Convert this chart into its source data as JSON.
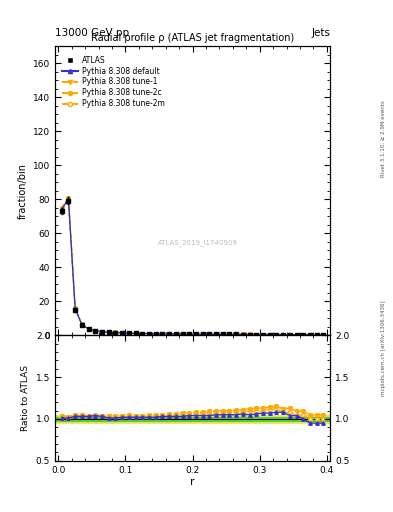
{
  "title": "Radial profile ρ (ATLAS jet fragmentation)",
  "top_left_label": "13000 GeV pp",
  "top_right_label": "Jets",
  "right_label_top": "Rivet 3.1.10, ≥ 2.9M events",
  "right_label_bottom": "mcplots.cern.ch [arXiv:1306.3436]",
  "watermark": "ATLAS_2019_I1740909",
  "ylabel_main": "fraction/bin",
  "ylabel_ratio": "Ratio to ATLAS",
  "xlabel": "r",
  "ylim_main": [
    0,
    170
  ],
  "ylim_ratio": [
    0.5,
    2.0
  ],
  "yticks_main": [
    0,
    20,
    40,
    60,
    80,
    100,
    120,
    140,
    160
  ],
  "yticks_ratio": [
    0.5,
    1.0,
    1.5,
    2.0
  ],
  "r_values": [
    0.005,
    0.015,
    0.025,
    0.035,
    0.045,
    0.055,
    0.065,
    0.075,
    0.085,
    0.095,
    0.105,
    0.115,
    0.125,
    0.135,
    0.145,
    0.155,
    0.165,
    0.175,
    0.185,
    0.195,
    0.205,
    0.215,
    0.225,
    0.235,
    0.245,
    0.255,
    0.265,
    0.275,
    0.285,
    0.295,
    0.305,
    0.315,
    0.325,
    0.335,
    0.345,
    0.355,
    0.365,
    0.375,
    0.385,
    0.395
  ],
  "atlas_data": [
    73,
    79,
    15,
    6,
    3.5,
    2.5,
    2.0,
    1.7,
    1.5,
    1.3,
    1.1,
    1.0,
    0.9,
    0.85,
    0.8,
    0.75,
    0.7,
    0.65,
    0.6,
    0.55,
    0.5,
    0.48,
    0.46,
    0.44,
    0.42,
    0.4,
    0.38,
    0.36,
    0.34,
    0.32,
    0.3,
    0.28,
    0.26,
    0.25,
    0.24,
    0.23,
    0.22,
    0.21,
    0.2,
    0.19
  ],
  "atlas_err": [
    2,
    2,
    0.5,
    0.3,
    0.15,
    0.1,
    0.08,
    0.07,
    0.06,
    0.05,
    0.04,
    0.04,
    0.03,
    0.03,
    0.03,
    0.03,
    0.03,
    0.02,
    0.02,
    0.02,
    0.02,
    0.02,
    0.02,
    0.02,
    0.02,
    0.02,
    0.02,
    0.02,
    0.02,
    0.02,
    0.02,
    0.01,
    0.01,
    0.01,
    0.01,
    0.01,
    0.01,
    0.01,
    0.01,
    0.01
  ],
  "pythia_default": [
    74,
    80,
    15.5,
    6.2,
    3.6,
    2.6,
    2.05,
    1.72,
    1.52,
    1.32,
    1.12,
    1.02,
    0.92,
    0.87,
    0.82,
    0.77,
    0.72,
    0.67,
    0.62,
    0.57,
    0.52,
    0.5,
    0.48,
    0.46,
    0.44,
    0.42,
    0.4,
    0.38,
    0.36,
    0.34,
    0.32,
    0.3,
    0.28,
    0.27,
    0.25,
    0.24,
    0.22,
    0.2,
    0.19,
    0.18
  ],
  "pythia_tune1": [
    75,
    80.5,
    15.8,
    6.3,
    3.65,
    2.62,
    2.07,
    1.75,
    1.55,
    1.35,
    1.15,
    1.04,
    0.94,
    0.89,
    0.84,
    0.79,
    0.74,
    0.69,
    0.64,
    0.59,
    0.54,
    0.52,
    0.5,
    0.48,
    0.46,
    0.44,
    0.42,
    0.4,
    0.38,
    0.36,
    0.34,
    0.32,
    0.3,
    0.28,
    0.27,
    0.25,
    0.24,
    0.22,
    0.21,
    0.2
  ],
  "pythia_tune2c": [
    75,
    80.5,
    15.8,
    6.3,
    3.65,
    2.62,
    2.07,
    1.75,
    1.55,
    1.35,
    1.15,
    1.04,
    0.94,
    0.89,
    0.84,
    0.79,
    0.74,
    0.69,
    0.64,
    0.59,
    0.54,
    0.52,
    0.5,
    0.48,
    0.46,
    0.44,
    0.42,
    0.4,
    0.38,
    0.36,
    0.34,
    0.32,
    0.3,
    0.28,
    0.27,
    0.25,
    0.24,
    0.22,
    0.21,
    0.2
  ],
  "pythia_tune2m": [
    74.5,
    80.2,
    15.6,
    6.25,
    3.62,
    2.58,
    2.06,
    1.73,
    1.53,
    1.33,
    1.13,
    1.03,
    0.93,
    0.88,
    0.83,
    0.78,
    0.73,
    0.68,
    0.63,
    0.58,
    0.53,
    0.51,
    0.49,
    0.47,
    0.45,
    0.43,
    0.41,
    0.39,
    0.37,
    0.35,
    0.33,
    0.31,
    0.29,
    0.27,
    0.26,
    0.24,
    0.23,
    0.21,
    0.2,
    0.19
  ],
  "ratio_default": [
    1.01,
    1.01,
    1.03,
    1.03,
    1.03,
    1.04,
    1.03,
    1.01,
    1.01,
    1.02,
    1.02,
    1.02,
    1.02,
    1.02,
    1.02,
    1.03,
    1.03,
    1.03,
    1.03,
    1.04,
    1.04,
    1.04,
    1.04,
    1.05,
    1.05,
    1.05,
    1.05,
    1.06,
    1.05,
    1.06,
    1.07,
    1.07,
    1.08,
    1.08,
    1.04,
    1.04,
    1.0,
    0.95,
    0.95,
    0.95
  ],
  "ratio_tune1": [
    1.03,
    1.02,
    1.05,
    1.05,
    1.04,
    1.05,
    1.04,
    1.03,
    1.03,
    1.04,
    1.05,
    1.04,
    1.04,
    1.05,
    1.05,
    1.05,
    1.06,
    1.06,
    1.07,
    1.07,
    1.08,
    1.08,
    1.09,
    1.09,
    1.1,
    1.1,
    1.11,
    1.11,
    1.12,
    1.13,
    1.13,
    1.14,
    1.15,
    1.12,
    1.13,
    1.09,
    1.09,
    1.05,
    1.05,
    1.05
  ],
  "ratio_tune2c": [
    1.03,
    1.02,
    1.05,
    1.05,
    1.04,
    1.05,
    1.04,
    1.03,
    1.03,
    1.04,
    1.05,
    1.04,
    1.04,
    1.05,
    1.05,
    1.05,
    1.06,
    1.06,
    1.07,
    1.07,
    1.08,
    1.08,
    1.09,
    1.09,
    1.1,
    1.1,
    1.11,
    1.11,
    1.12,
    1.13,
    1.13,
    1.14,
    1.15,
    1.12,
    1.13,
    1.09,
    1.09,
    1.05,
    1.05,
    1.05
  ],
  "ratio_tune2m": [
    1.02,
    1.01,
    1.04,
    1.04,
    1.03,
    1.03,
    1.03,
    1.02,
    1.02,
    1.02,
    1.03,
    1.03,
    1.03,
    1.03,
    1.04,
    1.04,
    1.04,
    1.05,
    1.05,
    1.05,
    1.06,
    1.06,
    1.07,
    1.07,
    1.07,
    1.08,
    1.08,
    1.08,
    1.09,
    1.09,
    1.1,
    1.11,
    1.12,
    1.08,
    1.08,
    1.04,
    1.05,
    1.0,
    1.0,
    1.0
  ],
  "atlas_band_green": 0.02,
  "atlas_band_yellow": 0.05,
  "color_atlas": "#000000",
  "color_default": "#3333cc",
  "color_orange": "#ffaa00",
  "xticks": [
    0.0,
    0.1,
    0.2,
    0.3,
    0.4
  ]
}
